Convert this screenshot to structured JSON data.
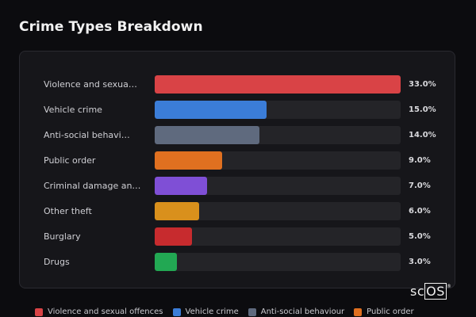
{
  "header": {
    "title": "Crime Types Breakdown"
  },
  "watermark": {
    "prefix": "sc",
    "boxed": "OS",
    "mark": "®"
  },
  "chart_data": {
    "type": "bar",
    "orientation": "horizontal",
    "title": "Crime Types Breakdown",
    "xlim": [
      0,
      33
    ],
    "categories": [
      "Violence and sexua…",
      "Vehicle crime",
      "Anti-social behavi…",
      "Public order",
      "Criminal damage an…",
      "Other theft",
      "Burglary",
      "Drugs"
    ],
    "values": [
      33.0,
      15.0,
      14.0,
      9.0,
      7.0,
      6.0,
      5.0,
      3.0
    ],
    "value_labels": [
      "33.0%",
      "15.0%",
      "14.0%",
      "9.0%",
      "7.0%",
      "6.0%",
      "5.0%",
      "3.0%"
    ],
    "colors": [
      "#d94346",
      "#3b7dd8",
      "#5f6a7e",
      "#e07020",
      "#7f4fd6",
      "#d9901c",
      "#c72b2e",
      "#22a853"
    ],
    "legend": {
      "placement": "bottom",
      "entries": [
        {
          "name": "Violence and sexual offences",
          "color": "#d94346"
        },
        {
          "name": "Vehicle crime",
          "color": "#3b7dd8"
        },
        {
          "name": "Anti-social behaviour",
          "color": "#5f6a7e"
        },
        {
          "name": "Public order",
          "color": "#e07020"
        }
      ]
    }
  }
}
